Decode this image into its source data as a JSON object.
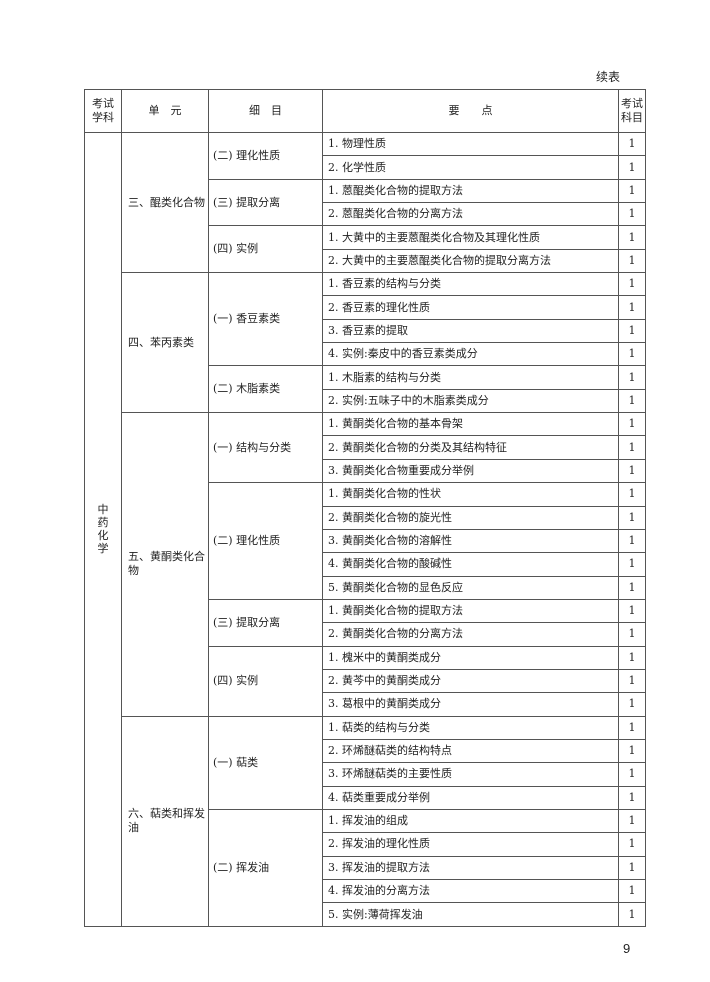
{
  "continued_label": "续表",
  "headers": {
    "subject": "考试\n学科",
    "unit": "单　元",
    "detail": "细　目",
    "points": "要　　点",
    "exam_subject": "考试\n科目"
  },
  "subject": "中药化学",
  "units": [
    {
      "label": "三、醌类化合物",
      "subsections": [
        {
          "label": "(二) 理化性质",
          "points": [
            {
              "text": "1. 物理性质",
              "score": "1"
            },
            {
              "text": "2. 化学性质",
              "score": "1"
            }
          ]
        },
        {
          "label": "(三) 提取分离",
          "points": [
            {
              "text": "1. 蒽醌类化合物的提取方法",
              "score": "1"
            },
            {
              "text": "2. 蒽醌类化合物的分离方法",
              "score": "1"
            }
          ]
        },
        {
          "label": "(四) 实例",
          "points": [
            {
              "text": "1. 大黄中的主要蒽醌类化合物及其理化性质",
              "score": "1"
            },
            {
              "text": "2. 大黄中的主要蒽醌类化合物的提取分离方法",
              "score": "1"
            }
          ]
        }
      ]
    },
    {
      "label": "四、苯丙素类",
      "subsections": [
        {
          "label": "(一) 香豆素类",
          "points": [
            {
              "text": "1. 香豆素的结构与分类",
              "score": "1"
            },
            {
              "text": "2. 香豆素的理化性质",
              "score": "1"
            },
            {
              "text": "3. 香豆素的提取",
              "score": "1"
            },
            {
              "text": "4. 实例:秦皮中的香豆素类成分",
              "score": "1"
            }
          ]
        },
        {
          "label": "(二) 木脂素类",
          "points": [
            {
              "text": "1. 木脂素的结构与分类",
              "score": "1"
            },
            {
              "text": "2. 实例:五味子中的木脂素类成分",
              "score": "1"
            }
          ]
        }
      ]
    },
    {
      "label": "五、黄酮类化合物",
      "subsections": [
        {
          "label": "(一) 结构与分类",
          "points": [
            {
              "text": "1. 黄酮类化合物的基本骨架",
              "score": "1"
            },
            {
              "text": "2. 黄酮类化合物的分类及其结构特征",
              "score": "1"
            },
            {
              "text": "3. 黄酮类化合物重要成分举例",
              "score": "1"
            }
          ]
        },
        {
          "label": "(二) 理化性质",
          "points": [
            {
              "text": "1. 黄酮类化合物的性状",
              "score": "1"
            },
            {
              "text": "2. 黄酮类化合物的旋光性",
              "score": "1"
            },
            {
              "text": "3. 黄酮类化合物的溶解性",
              "score": "1"
            },
            {
              "text": "4. 黄酮类化合物的酸碱性",
              "score": "1"
            },
            {
              "text": "5. 黄酮类化合物的显色反应",
              "score": "1"
            }
          ]
        },
        {
          "label": "(三) 提取分离",
          "points": [
            {
              "text": "1. 黄酮类化合物的提取方法",
              "score": "1"
            },
            {
              "text": "2. 黄酮类化合物的分离方法",
              "score": "1"
            }
          ]
        },
        {
          "label": "(四) 实例",
          "points": [
            {
              "text": "1. 槐米中的黄酮类成分",
              "score": "1"
            },
            {
              "text": "2. 黄芩中的黄酮类成分",
              "score": "1"
            },
            {
              "text": "3. 葛根中的黄酮类成分",
              "score": "1"
            }
          ]
        }
      ]
    },
    {
      "label": "六、萜类和挥发油",
      "subsections": [
        {
          "label": "(一) 萜类",
          "points": [
            {
              "text": "1. 萜类的结构与分类",
              "score": "1"
            },
            {
              "text": "2. 环烯醚萜类的结构特点",
              "score": "1"
            },
            {
              "text": "3. 环烯醚萜类的主要性质",
              "score": "1"
            },
            {
              "text": "4. 萜类重要成分举例",
              "score": "1"
            }
          ]
        },
        {
          "label": "(二) 挥发油",
          "points": [
            {
              "text": "1. 挥发油的组成",
              "score": "1"
            },
            {
              "text": "2. 挥发油的理化性质",
              "score": "1"
            },
            {
              "text": "3. 挥发油的提取方法",
              "score": "1"
            },
            {
              "text": "4. 挥发油的分离方法",
              "score": "1"
            },
            {
              "text": "5. 实例:薄荷挥发油",
              "score": "1"
            }
          ]
        }
      ]
    }
  ],
  "page_number": "9"
}
